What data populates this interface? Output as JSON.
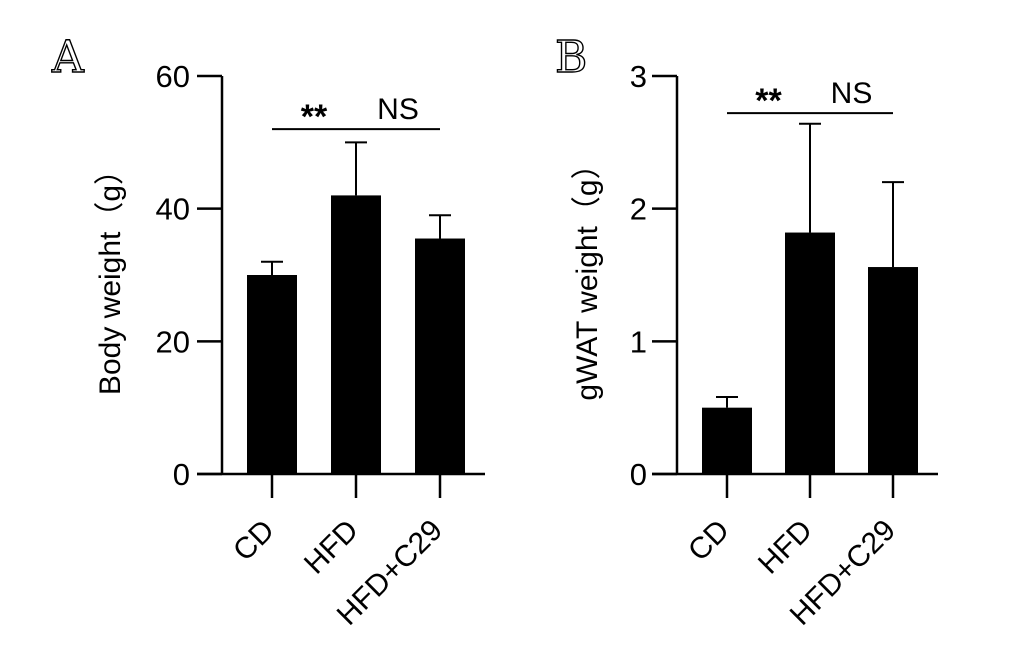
{
  "figure": {
    "background": "#ffffff",
    "bar_color": "#000000"
  },
  "chart_data": [
    {
      "panel": "A",
      "type": "bar",
      "categories": [
        "CD",
        "HFD",
        "HFD+C29"
      ],
      "values": [
        30,
        42,
        35.5
      ],
      "errors": [
        2,
        8,
        3.5
      ],
      "ylabel": "Body weight（g）",
      "xlabel": "",
      "ylim": [
        0,
        60
      ],
      "yticks": [
        "0",
        "20",
        "40",
        "60"
      ],
      "grid": false,
      "significance": [
        {
          "from": 0,
          "to": 1,
          "y": 52,
          "label": "**"
        },
        {
          "from": 1,
          "to": 2,
          "y": 52,
          "label": "NS"
        }
      ]
    },
    {
      "panel": "B",
      "type": "bar",
      "categories": [
        "CD",
        "HFD",
        "HFD+C29"
      ],
      "values": [
        0.5,
        1.82,
        1.56
      ],
      "errors": [
        0.08,
        0.82,
        0.64
      ],
      "ylabel": "gWAT weight（g）",
      "xlabel": "",
      "ylim": [
        0,
        3
      ],
      "yticks": [
        "0",
        "1",
        "2",
        "3"
      ],
      "grid": false,
      "significance": [
        {
          "from": 0,
          "to": 1,
          "y": 2.72,
          "label": "**"
        },
        {
          "from": 1,
          "to": 2,
          "y": 2.72,
          "label": "NS"
        }
      ]
    }
  ]
}
